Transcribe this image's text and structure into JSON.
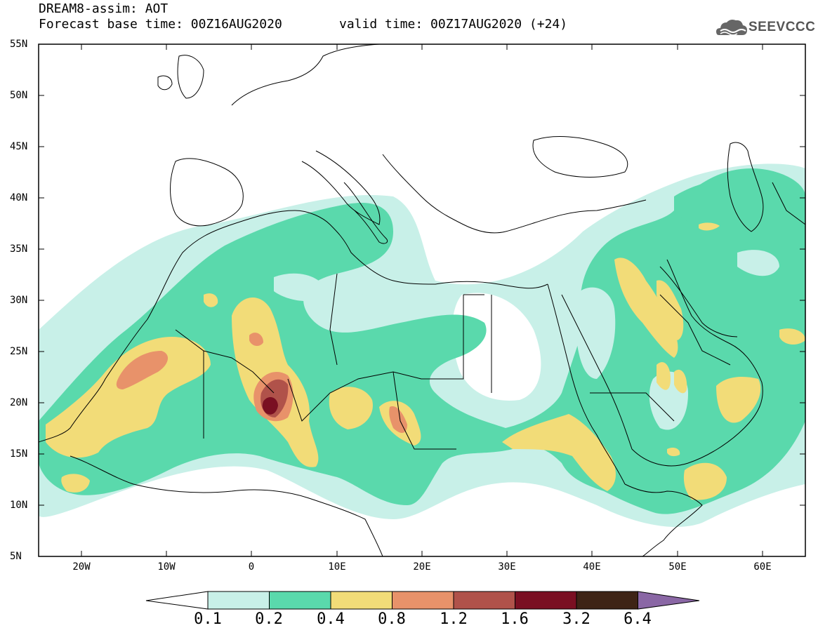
{
  "header": {
    "title": "DREAM8-assim: AOT",
    "base_time": "Forecast base time: 00Z16AUG2020",
    "valid_time": "valid time: 00Z17AUG2020 (+24)"
  },
  "logo": {
    "text": "SEEVCCC",
    "icon": "cloud-logo-icon"
  },
  "map": {
    "projection": "equirectangular",
    "lon_range": [
      -25,
      65
    ],
    "lat_range": [
      5,
      55
    ],
    "lat_ticks": [
      "55N",
      "50N",
      "45N",
      "40N",
      "35N",
      "30N",
      "25N",
      "20N",
      "15N",
      "10N",
      "5N"
    ],
    "lon_ticks": [
      "20W",
      "10W",
      "0",
      "10E",
      "20E",
      "30E",
      "40E",
      "50E",
      "60E"
    ]
  },
  "colorbar": {
    "labels": [
      "0.1",
      "0.2",
      "0.4",
      "0.8",
      "1.2",
      "1.6",
      "3.2",
      "6.4"
    ],
    "colors": [
      "#ffffff",
      "#c8f0e8",
      "#5ad9ac",
      "#f2dc78",
      "#e8926a",
      "#b0524a",
      "#7a0f22",
      "#3e2416",
      "#8a67a5"
    ]
  }
}
